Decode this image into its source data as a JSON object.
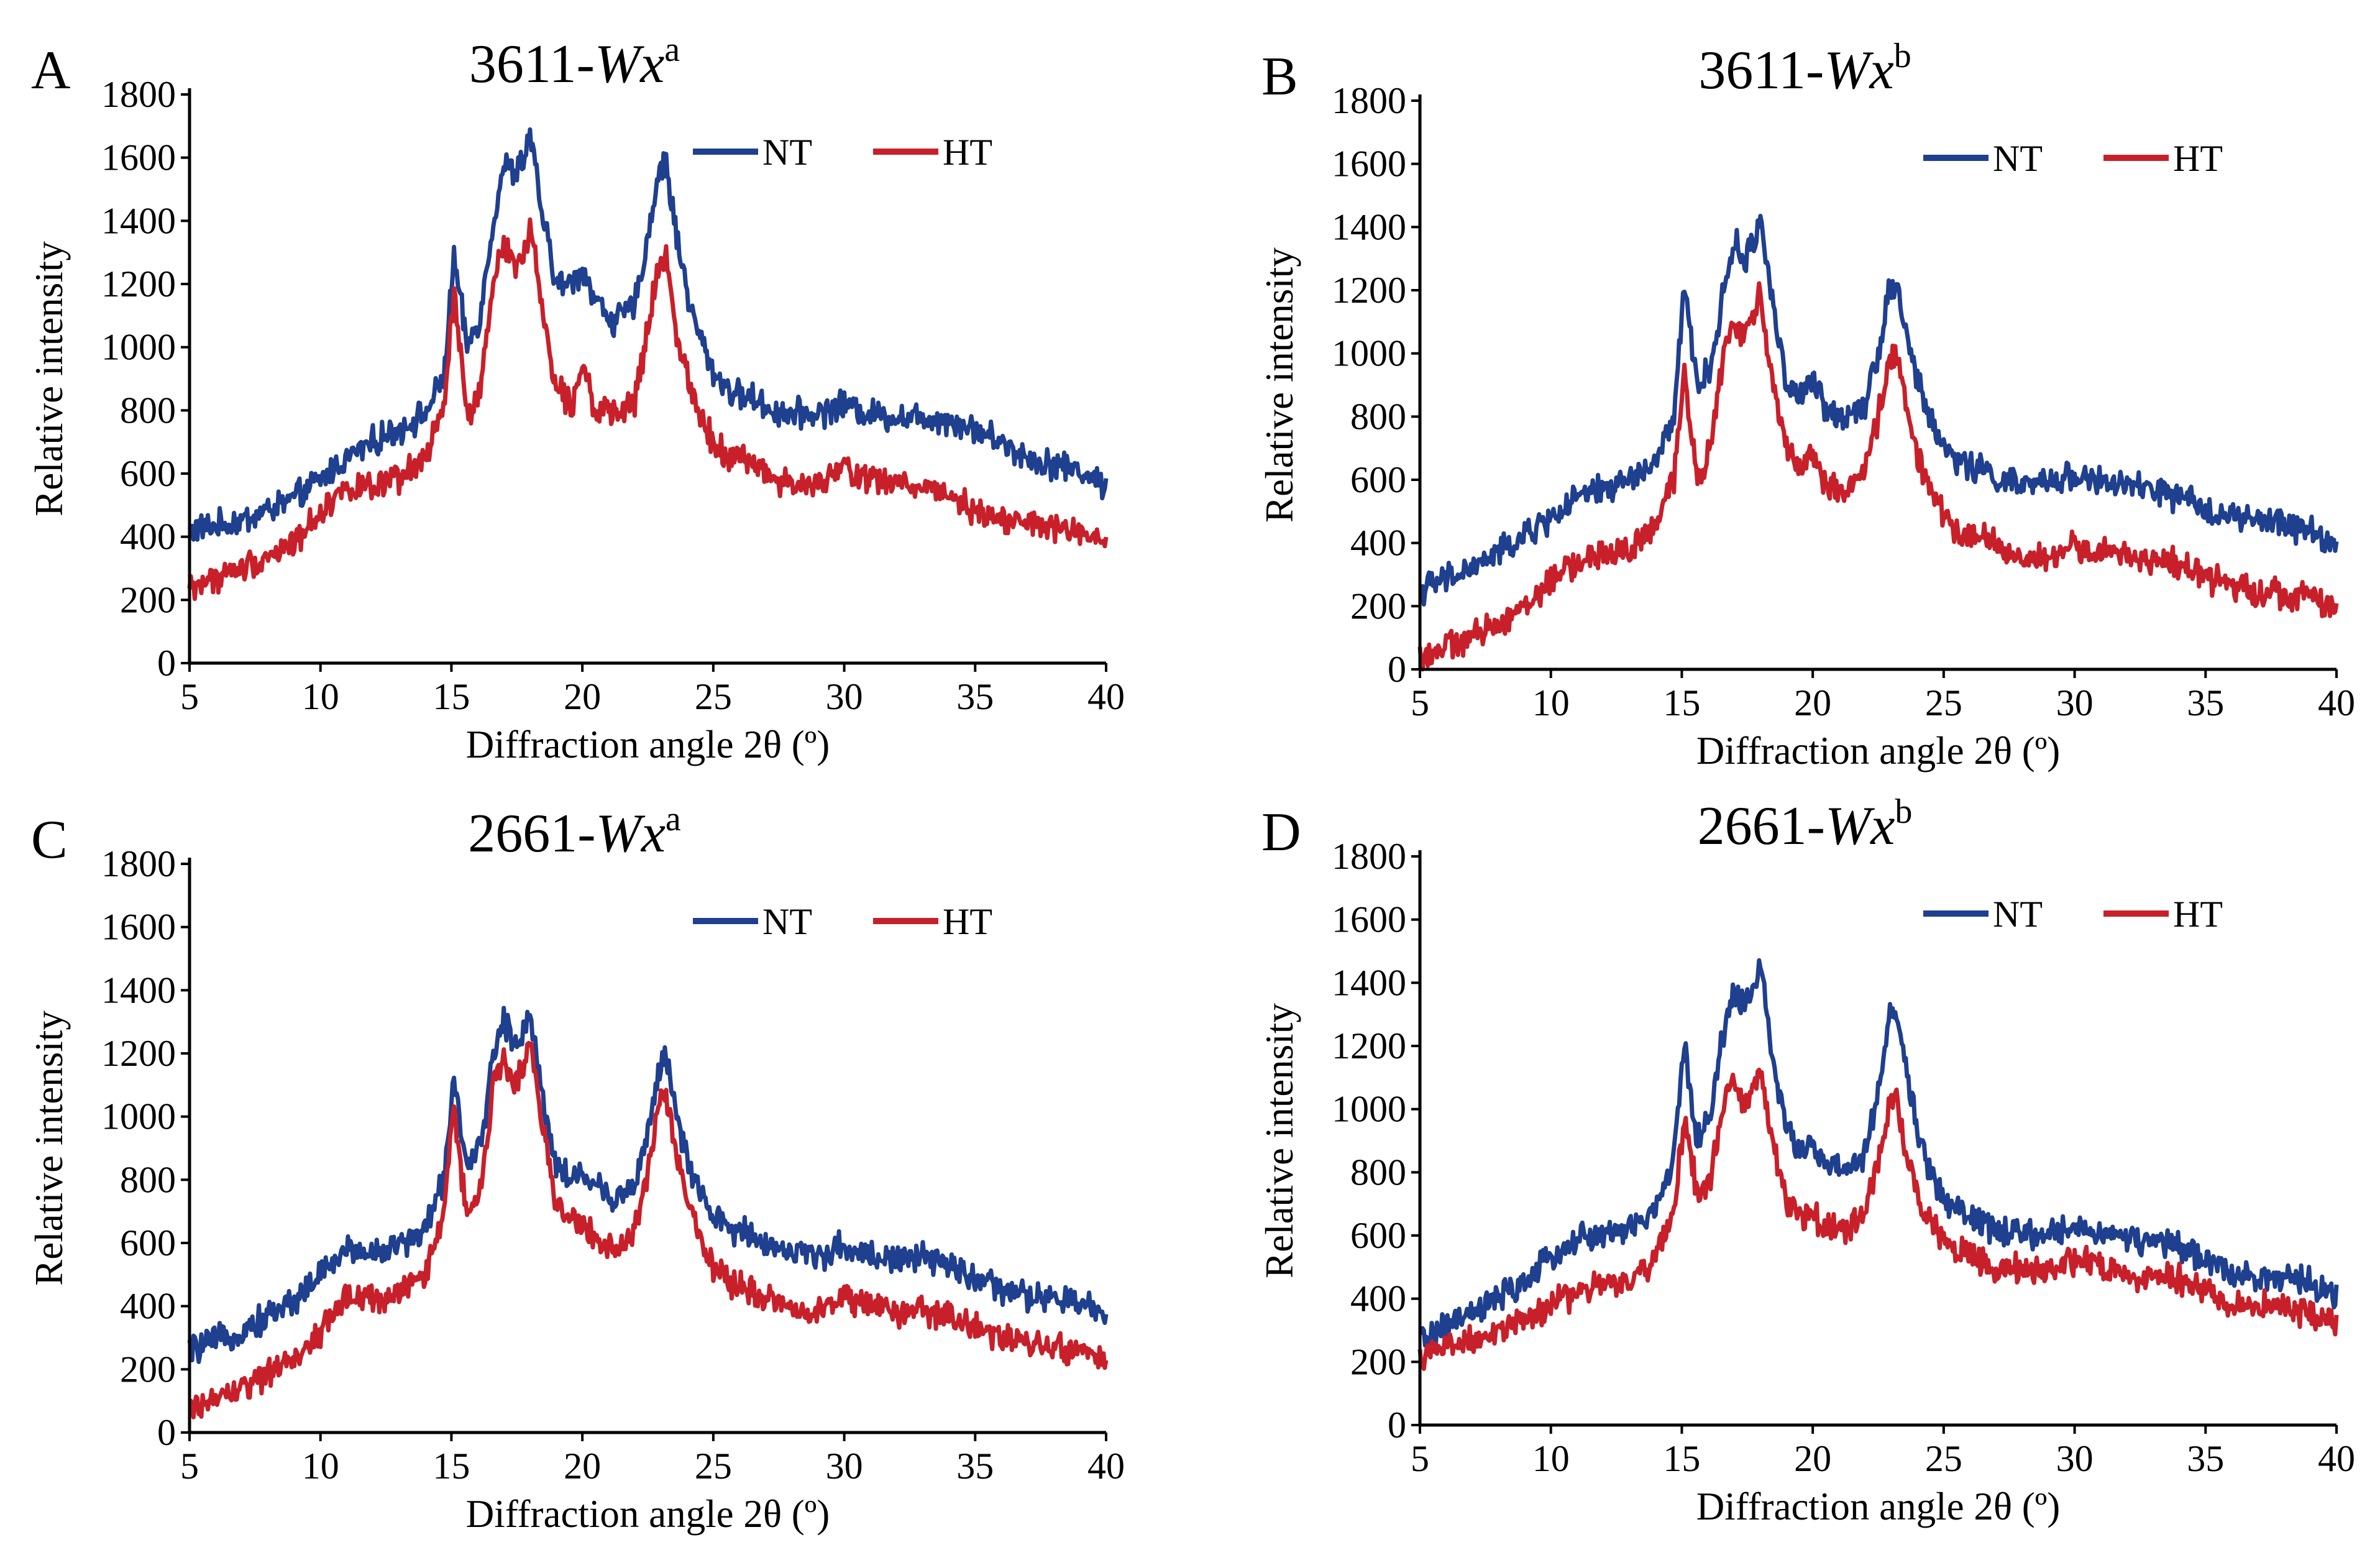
{
  "chart_data": [
    {
      "panel": "A",
      "type": "line",
      "title": "3611-Wx",
      "title_base": "3611-",
      "title_italic": "Wx",
      "title_sup": "a",
      "xlabel": "Diffraction angle 2θ (º)",
      "ylabel": "Relative intensity",
      "xlim": [
        5,
        40
      ],
      "ylim": [
        0,
        1800
      ],
      "xticks": [
        5,
        10,
        15,
        20,
        25,
        30,
        35,
        40
      ],
      "yticks": [
        0,
        200,
        400,
        600,
        800,
        1000,
        1200,
        1400,
        1600,
        1800
      ],
      "legend_position": "top-right",
      "series": [
        {
          "name": "NT",
          "color": "#1f3f8f",
          "x": [
            5,
            7,
            9,
            10,
            11,
            12,
            13,
            14,
            14.7,
            15.1,
            15.6,
            16.1,
            16.6,
            17.0,
            17.4,
            17.8,
            18.0,
            18.4,
            19.0,
            19.6,
            20.0,
            20.5,
            21.2,
            22.0,
            22.5,
            22.9,
            23.2,
            23.6,
            24.2,
            25.0,
            25.8,
            26.5,
            27.2,
            28.0,
            29.0,
            30.0,
            31.0,
            32.0,
            33.0,
            34.0,
            35.0,
            36.0,
            37.0,
            38.0,
            39.0,
            40.0
          ],
          "values": [
            420,
            450,
            520,
            580,
            650,
            700,
            740,
            790,
            900,
            1280,
            1000,
            1100,
            1400,
            1580,
            1550,
            1600,
            1680,
            1450,
            1200,
            1200,
            1250,
            1150,
            1080,
            1130,
            1350,
            1550,
            1580,
            1350,
            1100,
            920,
            850,
            840,
            800,
            790,
            790,
            820,
            790,
            780,
            780,
            770,
            740,
            700,
            650,
            630,
            610,
            560
          ]
        },
        {
          "name": "HT",
          "color": "#c8202a",
          "x": [
            5,
            7,
            9,
            10,
            11,
            12,
            13,
            14,
            14.7,
            15.1,
            15.6,
            16.1,
            16.6,
            17.0,
            17.4,
            17.8,
            18.0,
            18.4,
            19.0,
            19.6,
            20.0,
            20.5,
            21.2,
            22.0,
            22.5,
            22.9,
            23.2,
            23.6,
            24.2,
            25.0,
            25.8,
            26.5,
            27.2,
            28.0,
            29.0,
            30.0,
            31.0,
            32.0,
            33.0,
            34.0,
            35.0,
            36.0,
            37.0,
            38.0,
            39.0,
            40.0
          ],
          "values": [
            240,
            300,
            380,
            480,
            560,
            550,
            580,
            650,
            800,
            1170,
            780,
            850,
            1200,
            1350,
            1250,
            1300,
            1400,
            1150,
            880,
            820,
            960,
            800,
            780,
            830,
            1050,
            1250,
            1280,
            1050,
            850,
            700,
            650,
            640,
            590,
            560,
            560,
            620,
            580,
            570,
            560,
            540,
            480,
            460,
            440,
            430,
            410,
            370
          ]
        }
      ]
    },
    {
      "panel": "B",
      "type": "line",
      "title": "3611-Wx",
      "title_base": "3611-",
      "title_italic": "Wx",
      "title_sup": "b",
      "xlabel": "Diffraction angle 2θ (º)",
      "ylabel": "Relative intensity",
      "xlim": [
        5,
        40
      ],
      "ylim": [
        0,
        1800
      ],
      "xticks": [
        5,
        10,
        15,
        20,
        25,
        30,
        35,
        40
      ],
      "yticks": [
        0,
        200,
        400,
        600,
        800,
        1000,
        1200,
        1400,
        1600,
        1800
      ],
      "legend_position": "top-right",
      "series": [
        {
          "name": "NT",
          "color": "#1f3f8f",
          "x": [
            5,
            7,
            9,
            10,
            11,
            12,
            13,
            14,
            14.7,
            15.1,
            15.6,
            16.1,
            16.6,
            17.0,
            17.4,
            17.8,
            18.0,
            18.4,
            19.0,
            19.6,
            20.0,
            20.5,
            21.2,
            22.0,
            22.5,
            22.9,
            23.2,
            23.6,
            24.2,
            25.0,
            25.8,
            26.5,
            27.2,
            28.0,
            29.0,
            30.0,
            31.0,
            32.0,
            33.0,
            34.0,
            35.0,
            36.0,
            37.0,
            38.0,
            39.0,
            40.0
          ],
          "values": [
            250,
            320,
            420,
            480,
            540,
            570,
            600,
            650,
            800,
            1200,
            900,
            950,
            1200,
            1350,
            1300,
            1350,
            1440,
            1200,
            900,
            860,
            920,
            820,
            800,
            850,
            1000,
            1200,
            1220,
            1050,
            850,
            700,
            650,
            630,
            600,
            580,
            590,
            620,
            590,
            580,
            570,
            540,
            510,
            480,
            470,
            460,
            440,
            390
          ]
        },
        {
          "name": "HT",
          "color": "#c8202a",
          "x": [
            5,
            7,
            9,
            10,
            11,
            12,
            13,
            14,
            14.7,
            15.1,
            15.6,
            16.1,
            16.6,
            17.0,
            17.4,
            17.8,
            18.0,
            18.4,
            19.0,
            19.6,
            20.0,
            20.5,
            21.2,
            22.0,
            22.5,
            22.9,
            23.2,
            23.6,
            24.2,
            25.0,
            25.8,
            26.5,
            27.2,
            28.0,
            29.0,
            30.0,
            31.0,
            32.0,
            33.0,
            34.0,
            35.0,
            36.0,
            37.0,
            38.0,
            39.0,
            40.0
          ],
          "values": [
            40,
            100,
            200,
            280,
            340,
            360,
            380,
            450,
            600,
            950,
            600,
            700,
            1000,
            1100,
            1050,
            1120,
            1200,
            950,
            700,
            640,
            700,
            580,
            560,
            620,
            800,
            980,
            1000,
            820,
            620,
            480,
            430,
            420,
            380,
            350,
            350,
            390,
            370,
            360,
            350,
            330,
            290,
            270,
            250,
            240,
            230,
            190
          ]
        }
      ]
    },
    {
      "panel": "C",
      "type": "line",
      "title": "2661-Wx",
      "title_base": "2661-",
      "title_italic": "Wx",
      "title_sup": "a",
      "xlabel": "Diffraction angle 2θ (º)",
      "ylabel": "Relative intensity",
      "xlim": [
        5,
        40
      ],
      "ylim": [
        0,
        1800
      ],
      "xticks": [
        5,
        10,
        15,
        20,
        25,
        30,
        35,
        40
      ],
      "yticks": [
        0,
        200,
        400,
        600,
        800,
        1000,
        1200,
        1400,
        1600,
        1800
      ],
      "legend_position": "top-right",
      "series": [
        {
          "name": "NT",
          "color": "#1f3f8f",
          "x": [
            5,
            7,
            9,
            10,
            11,
            12,
            13,
            14,
            14.7,
            15.1,
            15.6,
            16.1,
            16.6,
            17.0,
            17.4,
            17.8,
            18.0,
            18.4,
            19.0,
            19.6,
            20.0,
            20.5,
            21.2,
            22.0,
            22.5,
            22.9,
            23.2,
            23.6,
            24.2,
            25.0,
            25.8,
            26.5,
            27.2,
            28.0,
            29.0,
            30.0,
            31.0,
            32.0,
            33.0,
            34.0,
            35.0,
            36.0,
            37.0,
            38.0,
            39.0,
            40.0
          ],
          "values": [
            260,
            320,
            420,
            500,
            580,
            570,
            590,
            640,
            800,
            1130,
            820,
            900,
            1200,
            1300,
            1230,
            1280,
            1340,
            1100,
            850,
            800,
            820,
            780,
            740,
            780,
            950,
            1150,
            1180,
            1000,
            800,
            680,
            640,
            630,
            590,
            570,
            560,
            590,
            560,
            550,
            550,
            530,
            490,
            450,
            430,
            420,
            410,
            370
          ]
        },
        {
          "name": "HT",
          "color": "#c8202a",
          "x": [
            5,
            7,
            9,
            10,
            11,
            12,
            13,
            14,
            14.7,
            15.1,
            15.6,
            16.1,
            16.6,
            17.0,
            17.4,
            17.8,
            18.0,
            18.4,
            19.0,
            19.6,
            20.0,
            20.5,
            21.2,
            22.0,
            22.5,
            22.9,
            23.2,
            23.6,
            24.2,
            25.0,
            25.8,
            26.5,
            27.2,
            28.0,
            29.0,
            30.0,
            31.0,
            32.0,
            33.0,
            34.0,
            35.0,
            36.0,
            37.0,
            38.0,
            39.0,
            40.0
          ],
          "values": [
            70,
            140,
            230,
            320,
            430,
            420,
            440,
            500,
            700,
            1020,
            680,
            750,
            1100,
            1200,
            1100,
            1180,
            1250,
            1000,
            720,
            680,
            660,
            620,
            580,
            630,
            820,
            1050,
            1080,
            880,
            680,
            520,
            470,
            450,
            420,
            390,
            390,
            430,
            400,
            380,
            380,
            370,
            330,
            300,
            280,
            270,
            260,
            220
          ]
        }
      ]
    },
    {
      "panel": "D",
      "type": "line",
      "title": "2661-Wx",
      "title_base": "2661-",
      "title_italic": "Wx",
      "title_sup": "b",
      "xlabel": "Diffraction angle 2θ (º)",
      "ylabel": "Relative intensity",
      "xlim": [
        5,
        40
      ],
      "ylim": [
        0,
        1800
      ],
      "xticks": [
        5,
        10,
        15,
        20,
        25,
        30,
        35,
        40
      ],
      "yticks": [
        0,
        200,
        400,
        600,
        800,
        1000,
        1200,
        1400,
        1600,
        1800
      ],
      "legend_position": "top-right",
      "series": [
        {
          "name": "NT",
          "color": "#1f3f8f",
          "x": [
            5,
            7,
            9,
            10,
            11,
            12,
            13,
            14,
            14.7,
            15.1,
            15.6,
            16.1,
            16.6,
            17.0,
            17.4,
            17.8,
            18.0,
            18.4,
            19.0,
            19.6,
            20.0,
            20.5,
            21.2,
            22.0,
            22.5,
            22.9,
            23.2,
            23.6,
            24.2,
            25.0,
            25.8,
            26.5,
            27.2,
            28.0,
            29.0,
            30.0,
            31.0,
            32.0,
            33.0,
            34.0,
            35.0,
            36.0,
            37.0,
            38.0,
            39.0,
            40.0
          ],
          "values": [
            270,
            350,
            450,
            530,
            590,
            600,
            620,
            680,
            850,
            1200,
            900,
            980,
            1250,
            1380,
            1320,
            1400,
            1480,
            1200,
            920,
            880,
            880,
            830,
            800,
            850,
            1050,
            1280,
            1320,
            1100,
            860,
            720,
            660,
            640,
            610,
            600,
            600,
            630,
            610,
            590,
            580,
            560,
            520,
            490,
            470,
            460,
            450,
            410
          ]
        },
        {
          "name": "HT",
          "color": "#c8202a",
          "x": [
            5,
            7,
            9,
            10,
            11,
            12,
            13,
            14,
            14.7,
            15.1,
            15.6,
            16.1,
            16.6,
            17.0,
            17.4,
            17.8,
            18.0,
            18.4,
            19.0,
            19.6,
            20.0,
            20.5,
            21.2,
            22.0,
            22.5,
            22.9,
            23.2,
            23.6,
            24.2,
            25.0,
            25.8,
            26.5,
            27.2,
            28.0,
            29.0,
            30.0,
            31.0,
            32.0,
            33.0,
            34.0,
            35.0,
            36.0,
            37.0,
            38.0,
            39.0,
            40.0
          ],
          "values": [
            220,
            270,
            330,
            380,
            420,
            440,
            460,
            520,
            680,
            980,
            720,
            780,
            1020,
            1080,
            1020,
            1080,
            1140,
            920,
            700,
            660,
            670,
            630,
            620,
            670,
            850,
            1000,
            1020,
            850,
            680,
            580,
            540,
            520,
            500,
            490,
            490,
            520,
            500,
            480,
            470,
            460,
            420,
            390,
            380,
            370,
            350,
            310
          ]
        }
      ]
    }
  ]
}
